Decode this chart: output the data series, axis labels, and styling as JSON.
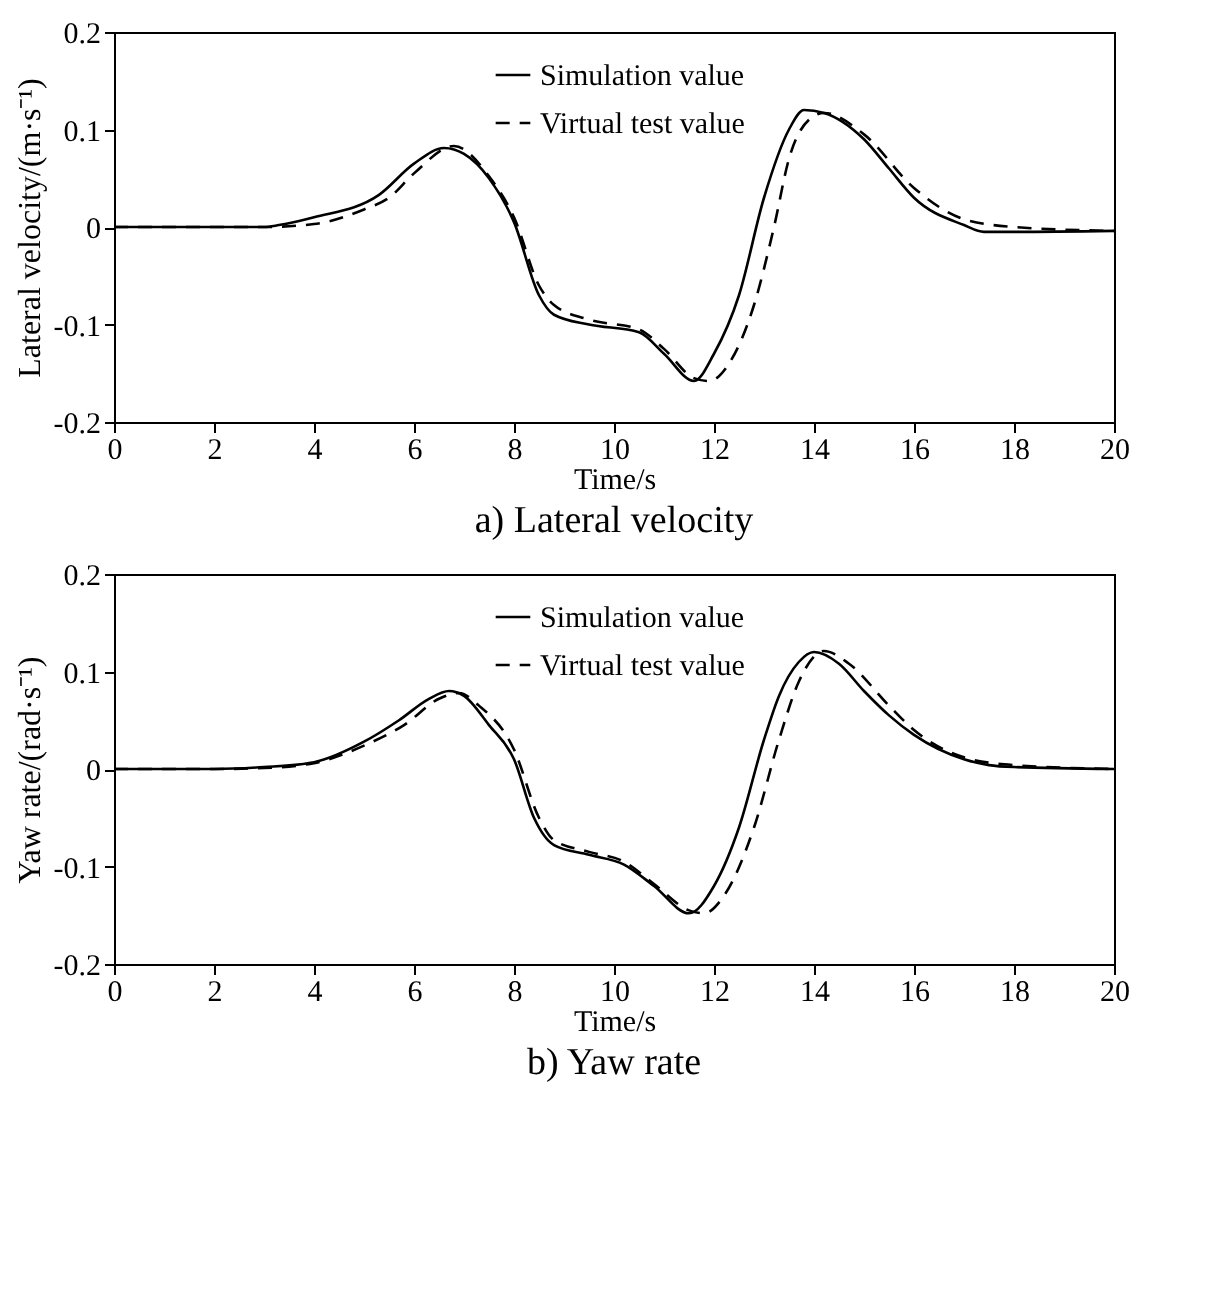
{
  "chart_data": [
    {
      "type": "line",
      "title": "a) Lateral velocity",
      "xlabel": "Time/s",
      "ylabel": "Lateral velocity/(m·s⁻¹)",
      "xlim": [
        0,
        20
      ],
      "ylim": [
        -0.2,
        0.2
      ],
      "xticks": [
        0,
        2,
        4,
        6,
        8,
        10,
        12,
        14,
        16,
        18,
        20
      ],
      "yticks": [
        -0.2,
        -0.1,
        0,
        0.1,
        0.2
      ],
      "grid": false,
      "legend": "top",
      "series": [
        {
          "name": "Simulation value",
          "color": "#000000",
          "line_style": "solid",
          "x": [
            0,
            2,
            3,
            3.3,
            4,
            5.3,
            6,
            6.6,
            7,
            7.5,
            8,
            8.5,
            8.8,
            9.5,
            10.5,
            11,
            11.6,
            12,
            12.5,
            13,
            13.5,
            13.8,
            14.2,
            15,
            15.5,
            16,
            17,
            17.4,
            18,
            20
          ],
          "values": [
            0,
            0,
            0,
            0.002,
            0.01,
            0.033,
            0.065,
            0.081,
            0.075,
            0.05,
            0.005,
            -0.07,
            -0.09,
            -0.1,
            -0.108,
            -0.13,
            -0.158,
            -0.13,
            -0.07,
            0.03,
            0.1,
            0.12,
            0.117,
            0.09,
            0.06,
            0.03,
            0.002,
            -0.005,
            -0.005,
            -0.004
          ]
        },
        {
          "name": "Virtual test value",
          "color": "#000000",
          "line_style": "dashed",
          "x": [
            0,
            3,
            4,
            5,
            5.5,
            6,
            6.8,
            7.5,
            8,
            8.5,
            8.8,
            9.5,
            10.5,
            11,
            11.6,
            11.9,
            12.3,
            12.8,
            13.2,
            13.5,
            13.9,
            14.2,
            15,
            16,
            17,
            18,
            20
          ],
          "values": [
            0,
            0,
            0.003,
            0.018,
            0.03,
            0.055,
            0.083,
            0.052,
            0.01,
            -0.06,
            -0.08,
            -0.095,
            -0.105,
            -0.125,
            -0.155,
            -0.158,
            -0.14,
            -0.08,
            0,
            0.07,
            0.11,
            0.117,
            0.095,
            0.04,
            0.008,
            0,
            -0.004
          ]
        }
      ]
    },
    {
      "type": "line",
      "title": "b) Yaw rate",
      "xlabel": "Time/s",
      "ylabel": "Yaw rate/(rad·s⁻¹)",
      "xlim": [
        0,
        20
      ],
      "ylim": [
        -0.2,
        0.2
      ],
      "xticks": [
        0,
        2,
        4,
        6,
        8,
        10,
        12,
        14,
        16,
        18,
        20
      ],
      "yticks": [
        -0.2,
        -0.1,
        0,
        0.1,
        0.2
      ],
      "grid": false,
      "legend": "top",
      "series": [
        {
          "name": "Simulation value",
          "color": "#000000",
          "line_style": "solid",
          "x": [
            0,
            2,
            3,
            4,
            5,
            5.7,
            6.3,
            6.7,
            7,
            7.5,
            8,
            8.4,
            8.8,
            9.5,
            10.2,
            10.8,
            11.5,
            12,
            12.5,
            13,
            13.3,
            13.7,
            14,
            14.5,
            15,
            15.5,
            16,
            17,
            17.5,
            18,
            20
          ],
          "values": [
            0,
            0,
            0.002,
            0.007,
            0.028,
            0.05,
            0.072,
            0.08,
            0.075,
            0.045,
            0.01,
            -0.05,
            -0.078,
            -0.088,
            -0.098,
            -0.12,
            -0.148,
            -0.12,
            -0.06,
            0.03,
            0.075,
            0.11,
            0.12,
            0.108,
            0.08,
            0.055,
            0.035,
            0.01,
            0.004,
            0.002,
            0
          ]
        },
        {
          "name": "Virtual test value",
          "color": "#000000",
          "line_style": "dashed",
          "x": [
            0,
            2,
            3,
            4,
            5,
            5.8,
            6.5,
            6.9,
            7.3,
            8,
            8.5,
            8.8,
            9.5,
            10.2,
            10.8,
            11.5,
            11.8,
            12.2,
            12.8,
            13.3,
            13.7,
            14.2,
            14.7,
            15.5,
            16,
            17,
            18,
            20
          ],
          "values": [
            0,
            0,
            0.001,
            0.006,
            0.024,
            0.045,
            0.072,
            0.078,
            0.065,
            0.02,
            -0.05,
            -0.073,
            -0.085,
            -0.095,
            -0.118,
            -0.145,
            -0.148,
            -0.13,
            -0.06,
            0.03,
            0.09,
            0.121,
            0.108,
            0.065,
            0.04,
            0.012,
            0.004,
            0
          ]
        }
      ]
    }
  ]
}
